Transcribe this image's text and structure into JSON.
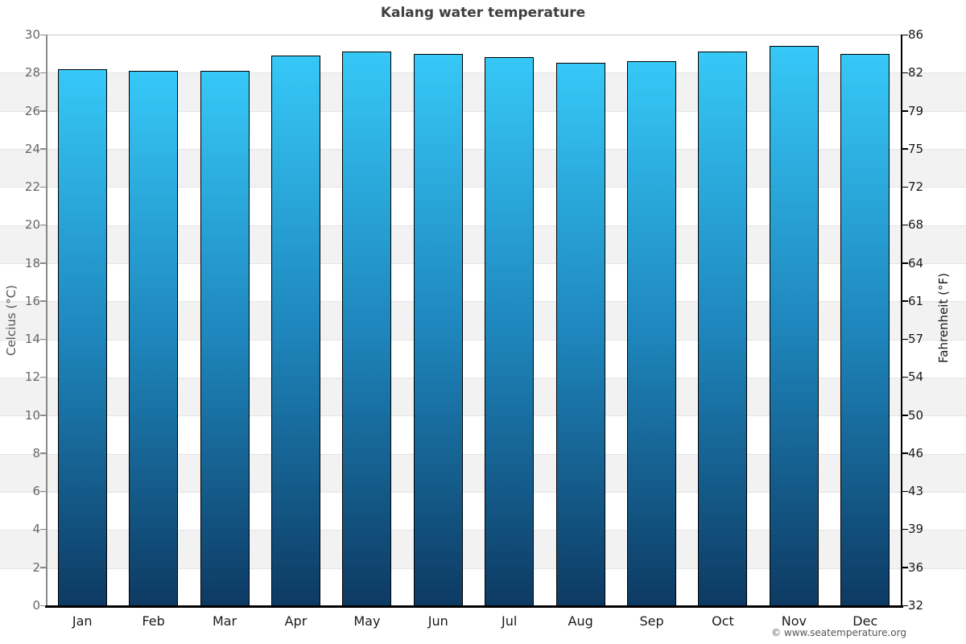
{
  "page": {
    "title": "Kalang water temperature",
    "footer": "© www.seatemperature.org"
  },
  "axis_titles": {
    "left": "Celcius (°C)",
    "right": "Fahrenheit (°F)"
  },
  "chart_data": {
    "type": "bar",
    "title": "Kalang water temperature",
    "categories": [
      "Jan",
      "Feb",
      "Mar",
      "Apr",
      "May",
      "Jun",
      "Jul",
      "Aug",
      "Sep",
      "Oct",
      "Nov",
      "Dec"
    ],
    "series": [
      {
        "name": "Water temperature (°C)",
        "values": [
          28.2,
          28.1,
          28.1,
          28.9,
          29.1,
          29.0,
          28.8,
          28.5,
          28.6,
          29.1,
          29.4,
          29.0
        ]
      }
    ],
    "xlabel": "",
    "ylabel": "Celcius (°C)",
    "ylabel_right": "Fahrenheit (°F)",
    "ylim": [
      0,
      30
    ],
    "celsius_ticks": [
      30,
      28,
      26,
      24,
      22,
      20,
      18,
      16,
      14,
      12,
      10,
      8,
      6,
      4,
      2,
      0
    ],
    "fahrenheit_ticks": [
      86,
      82,
      79,
      75,
      72,
      68,
      64,
      61,
      57,
      54,
      50,
      46,
      43,
      39,
      36,
      32
    ],
    "legend": "none",
    "grid": "horizontal alternating gray/white bands every 2°C",
    "colors": {
      "bar_gradient_top": "#36c8f7",
      "bar_gradient_mid": "#1e86bc",
      "bar_gradient_bottom": "#0d3a63",
      "bar_border": "#000000",
      "band_gray": "#f2f2f3",
      "band_white": "#ffffff",
      "left_axis": "#8a8a8a",
      "right_axis": "#000000",
      "bottom_axis": "#000000",
      "title_text": "#3f3f3f",
      "left_tick_text": "#666666",
      "right_tick_text": "#1a1a1a",
      "footer_text": "#555555"
    }
  }
}
